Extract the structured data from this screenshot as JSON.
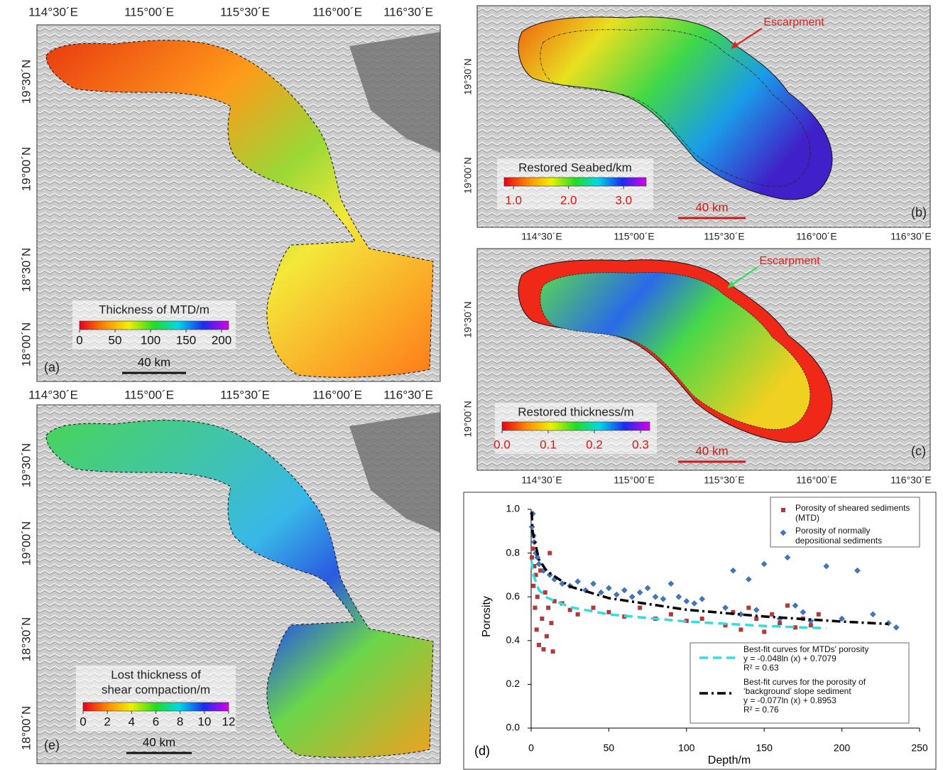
{
  "maps": [
    {
      "panel": "(a)",
      "lon_labels": [
        "114°30´E",
        "115°00´E",
        "115°30´E",
        "116°00´E",
        "116°30´E"
      ],
      "lat_labels": [
        "19°30´N",
        "19°00´N",
        "18°30´N",
        "18°00´N"
      ],
      "colorbar": {
        "title": [
          "Thickness of MTD/m"
        ],
        "range": [
          0,
          210
        ],
        "ticks": [
          0,
          50,
          100,
          150,
          200
        ]
      },
      "scale_bar": "40 km"
    },
    {
      "panel": "(b)",
      "lon_labels": [
        "114°30´E",
        "115°00´E",
        "115°30´E",
        "116°00´E",
        "116°30´E"
      ],
      "lat_labels": [
        "19°30´N",
        "19°00´N"
      ],
      "annotation": "Escarpment",
      "colorbar": {
        "title": [
          "Restored Seabed/km"
        ],
        "range": [
          0.83,
          3.41
        ],
        "ticks": [
          {
            "value": 1,
            "label": "1.0"
          },
          {
            "value": 2,
            "label": "2.0"
          },
          {
            "value": 3,
            "label": "3.0"
          }
        ]
      },
      "scale_bar": "40 km"
    },
    {
      "panel": "(c)",
      "lon_labels": [
        "114°30´E",
        "115°00´E",
        "115°30´E",
        "116°00´E",
        "116°30´E"
      ],
      "lat_labels": [
        "19°30´N",
        "19°00´N"
      ],
      "annotation": "Escarpment",
      "colorbar": {
        "title": [
          "Restored thickness/m"
        ],
        "range": [
          0,
          0.32
        ],
        "ticks": [
          {
            "value": 0,
            "label": "0.0"
          },
          0.1,
          0.2,
          0.3
        ]
      },
      "scale_bar": "40 km"
    },
    {
      "panel": "(e)",
      "lon_labels": [
        "114°30´E",
        "115°00´E",
        "115°30´E",
        "116°00´E",
        "116°30´E"
      ],
      "lat_labels": [
        "19°30´N",
        "19°00´N",
        "18°30´N",
        "18°00´N"
      ],
      "colorbar": {
        "title": [
          "Lost thickness of",
          "shear compaction/m"
        ],
        "range": [
          0,
          12
        ],
        "ticks": [
          0,
          2,
          4,
          6,
          8,
          10,
          12
        ]
      },
      "scale_bar": "40 km"
    }
  ],
  "chart_data": {
    "type": "scatter",
    "panel": "(d)",
    "x_label": "Depth/m",
    "y_label": "Porosity",
    "xlim": [
      0,
      250
    ],
    "ylim": [
      0,
      1
    ],
    "xticks": [
      0,
      50,
      100,
      150,
      200,
      250
    ],
    "yticks": [
      {
        "value": 0,
        "label": "0.0"
      },
      0.2,
      0.4,
      0.6,
      0.8,
      {
        "value": 1,
        "label": "1.0"
      }
    ],
    "series": [
      {
        "name": "Porosity of sheared sediments (MTD)",
        "color": "#b03a3a",
        "marker": "square",
        "x": [
          0.5,
          1,
          1.5,
          2,
          2.5,
          3,
          3.5,
          4,
          5,
          6,
          7,
          8,
          9,
          10,
          11,
          12,
          13,
          14,
          15,
          20,
          25,
          30,
          40,
          50,
          60,
          70,
          80,
          90,
          100,
          110,
          125,
          130,
          135,
          140,
          145,
          150,
          155,
          160,
          165,
          170,
          175,
          180,
          185
        ],
        "values": [
          0.78,
          0.82,
          0.65,
          0.74,
          0.55,
          0.7,
          0.45,
          0.6,
          0.38,
          0.72,
          0.5,
          0.36,
          0.62,
          0.42,
          0.55,
          0.8,
          0.48,
          0.35,
          0.58,
          0.57,
          0.54,
          0.52,
          0.55,
          0.53,
          0.51,
          0.55,
          0.5,
          0.52,
          0.49,
          0.5,
          0.47,
          0.53,
          0.45,
          0.55,
          0.5,
          0.44,
          0.52,
          0.48,
          0.56,
          0.46,
          0.5,
          0.47,
          0.52
        ]
      },
      {
        "name": "Porosity of normally depositional sediments",
        "color": "#3f78c0",
        "marker": "diamond",
        "x": [
          0.5,
          1,
          1.5,
          2,
          3,
          4,
          5,
          8,
          12,
          15,
          20,
          25,
          30,
          35,
          40,
          45,
          50,
          55,
          60,
          65,
          70,
          75,
          80,
          85,
          90,
          95,
          100,
          105,
          110,
          125,
          130,
          135,
          140,
          145,
          150,
          160,
          165,
          170,
          175,
          180,
          190,
          200,
          210,
          220,
          230,
          235
        ],
        "values": [
          0.92,
          0.98,
          0.88,
          0.85,
          0.8,
          0.78,
          0.75,
          0.72,
          0.7,
          0.68,
          0.66,
          0.65,
          0.67,
          0.63,
          0.66,
          0.62,
          0.64,
          0.61,
          0.63,
          0.6,
          0.62,
          0.64,
          0.6,
          0.59,
          0.66,
          0.6,
          0.58,
          0.57,
          0.59,
          0.55,
          0.72,
          0.52,
          0.68,
          0.54,
          0.75,
          0.5,
          0.78,
          0.56,
          0.53,
          0.49,
          0.74,
          0.5,
          0.72,
          0.52,
          0.48,
          0.46
        ]
      },
      {
        "name": "Best-fit curves for MTDs' porosity",
        "color": "#33dddd",
        "style": "dashed",
        "equation": "y = -0.048ln (x) + 0.7079",
        "r_squared": "R² = 0.63",
        "x": [
          0.3,
          1,
          5,
          10,
          25,
          50,
          100,
          150,
          190
        ],
        "values": [
          0.766,
          0.708,
          0.631,
          0.597,
          0.553,
          0.52,
          0.487,
          0.467,
          0.456
        ]
      },
      {
        "name": "Best-fit curves for the porosity of ‘background’ slope sediment",
        "color": "#000000",
        "style": "dash-dot",
        "equation": "y = -0.077ln (x) + 0.8953",
        "r_squared": "R² = 0.76",
        "x": [
          0.3,
          1,
          5,
          10,
          25,
          50,
          100,
          150,
          200,
          230
        ],
        "values": [
          0.988,
          0.895,
          0.771,
          0.718,
          0.647,
          0.594,
          0.541,
          0.51,
          0.487,
          0.476
        ]
      }
    ]
  }
}
